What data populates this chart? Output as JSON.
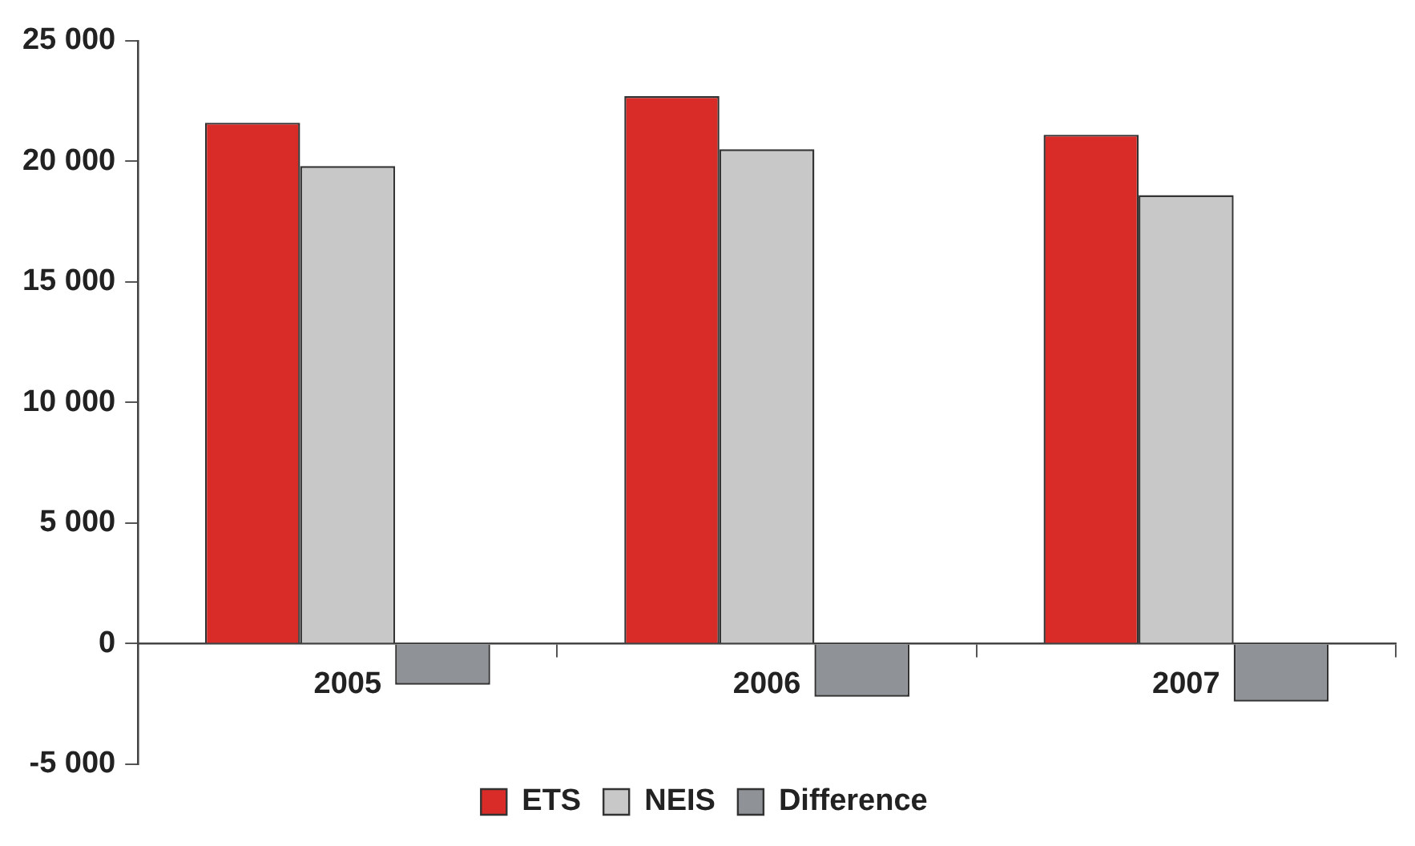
{
  "chart_data": {
    "type": "bar",
    "categories": [
      "2005",
      "2006",
      "2007"
    ],
    "series": [
      {
        "name": "ETS",
        "color": "#d92b27",
        "values": [
          21600,
          22700,
          21100
        ]
      },
      {
        "name": "NEIS",
        "color": "#c8c8c8",
        "values": [
          19800,
          20500,
          18600
        ]
      },
      {
        "name": "Difference",
        "color": "#8f9297",
        "values": [
          -1700,
          -2200,
          -2400
        ]
      }
    ],
    "ylim": [
      -5000,
      25000
    ],
    "yticks": [
      {
        "value": -5000,
        "label": "-5 000"
      },
      {
        "value": 0,
        "label": "0"
      },
      {
        "value": 5000,
        "label": "5 000"
      },
      {
        "value": 10000,
        "label": "10 000"
      },
      {
        "value": 15000,
        "label": "15 000"
      },
      {
        "value": 20000,
        "label": "20 000"
      },
      {
        "value": 25000,
        "label": "25 000"
      }
    ],
    "grid": false,
    "legend": "bottom"
  }
}
